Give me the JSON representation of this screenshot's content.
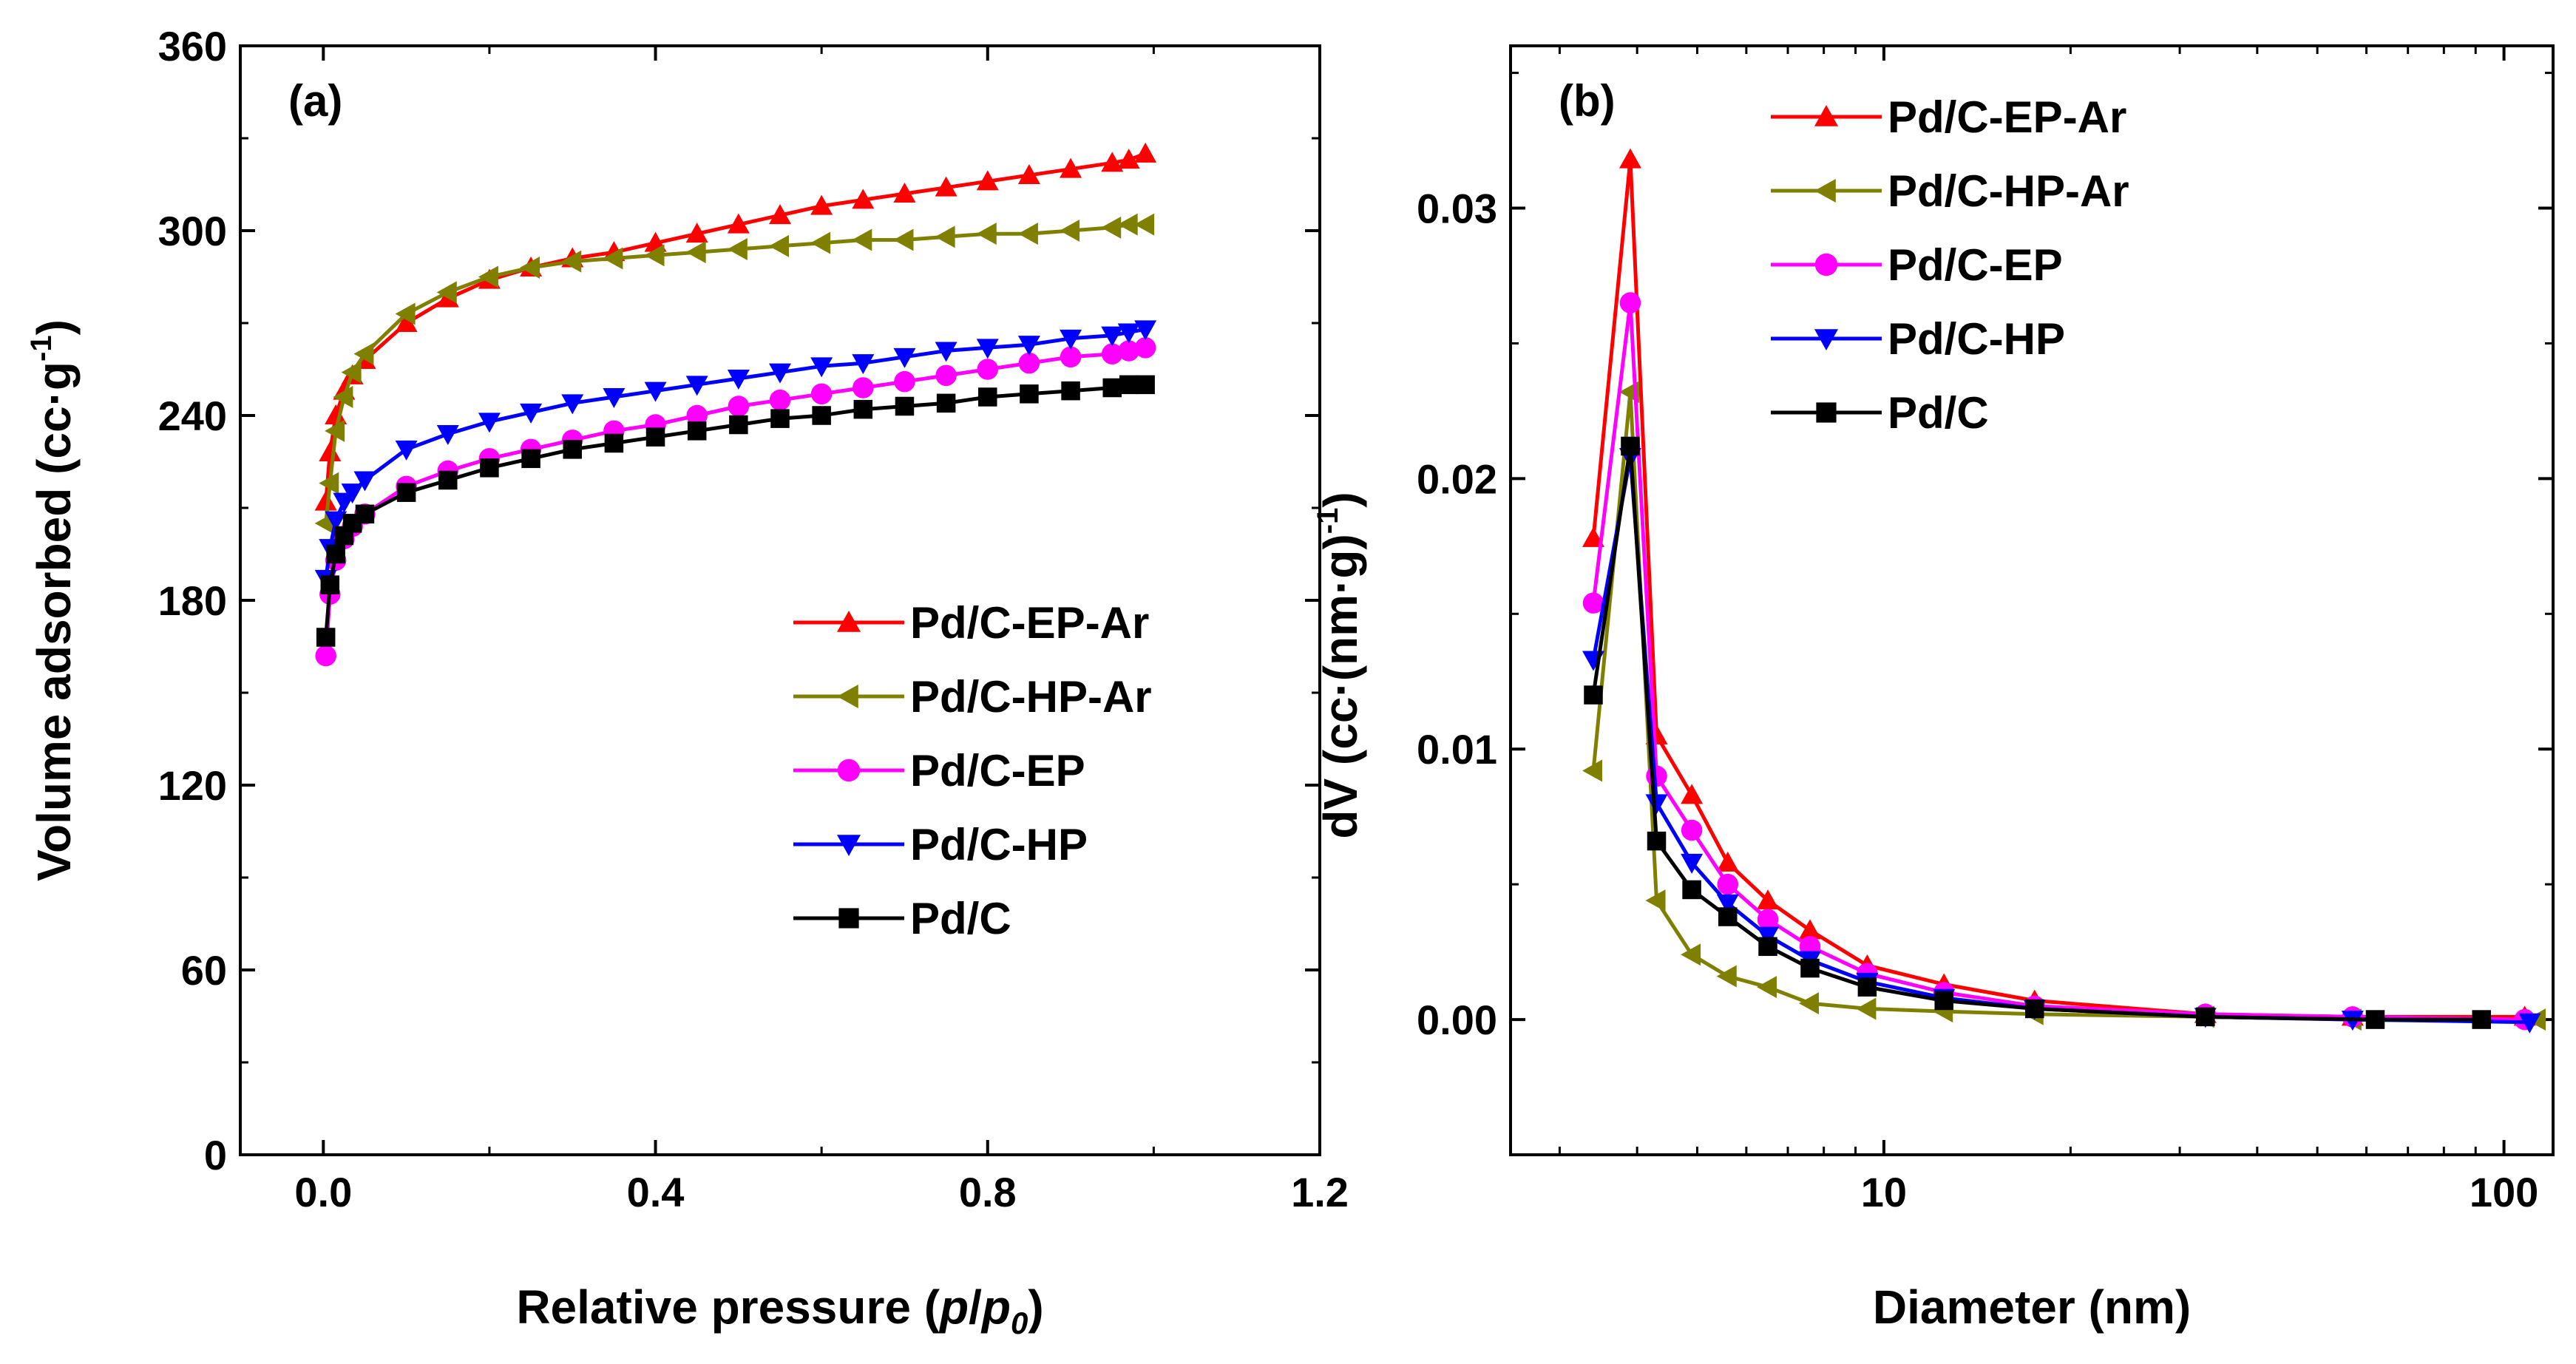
{
  "chart_data": [
    {
      "type": "line",
      "panel_label": "(a)",
      "xlabel_parts": [
        "Relative pressure (",
        "p",
        "/",
        "p",
        "0",
        ")"
      ],
      "ylabel": "Volume adsorbed (cc·g",
      "ylabel_sup": "-1",
      "ylabel_close": ")",
      "xlim": [
        -0.1,
        1.2
      ],
      "ylim": [
        0,
        360
      ],
      "xticks": [
        0.0,
        0.4,
        0.8,
        1.2
      ],
      "xtick_labels": [
        "0.0",
        "0.4",
        "0.8",
        "1.2"
      ],
      "yticks": [
        0,
        60,
        120,
        180,
        240,
        300,
        360
      ],
      "ytick_labels": [
        "0",
        "60",
        "120",
        "180",
        "240",
        "300",
        "360"
      ],
      "legend_position": "center-right",
      "series": [
        {
          "name": "Pd/C-EP-Ar",
          "color": "#ff0000",
          "marker": "triangle-up",
          "x": [
            0.003,
            0.008,
            0.015,
            0.025,
            0.035,
            0.05,
            0.1,
            0.15,
            0.2,
            0.25,
            0.3,
            0.35,
            0.4,
            0.45,
            0.5,
            0.55,
            0.6,
            0.65,
            0.7,
            0.75,
            0.8,
            0.85,
            0.9,
            0.95,
            0.97,
            0.99
          ],
          "y": [
            212,
            228,
            240,
            248,
            253,
            258,
            270,
            278,
            284,
            288,
            291,
            293,
            296,
            299,
            302,
            305,
            308,
            310,
            312,
            314,
            316,
            318,
            320,
            322,
            323,
            325
          ]
        },
        {
          "name": "Pd/C-HP-Ar",
          "color": "#808000",
          "marker": "triangle-left",
          "x": [
            0.003,
            0.008,
            0.015,
            0.025,
            0.035,
            0.05,
            0.1,
            0.15,
            0.2,
            0.25,
            0.3,
            0.35,
            0.4,
            0.45,
            0.5,
            0.55,
            0.6,
            0.65,
            0.7,
            0.75,
            0.8,
            0.85,
            0.9,
            0.95,
            0.97,
            0.99
          ],
          "y": [
            205,
            218,
            235,
            246,
            254,
            260,
            273,
            280,
            285,
            288,
            290,
            291,
            292,
            293,
            294,
            295,
            296,
            297,
            297,
            298,
            299,
            299,
            300,
            301,
            302,
            302
          ]
        },
        {
          "name": "Pd/C-EP",
          "color": "#ff00ff",
          "marker": "circle",
          "x": [
            0.003,
            0.008,
            0.015,
            0.025,
            0.035,
            0.05,
            0.1,
            0.15,
            0.2,
            0.25,
            0.3,
            0.35,
            0.4,
            0.45,
            0.5,
            0.55,
            0.6,
            0.65,
            0.7,
            0.75,
            0.8,
            0.85,
            0.9,
            0.95,
            0.97,
            0.99
          ],
          "y": [
            162,
            182,
            193,
            200,
            204,
            208,
            217,
            222,
            226,
            229,
            232,
            235,
            237,
            240,
            243,
            245,
            247,
            249,
            251,
            253,
            255,
            257,
            259,
            260,
            261,
            262
          ]
        },
        {
          "name": "Pd/C-HP",
          "color": "#0000ff",
          "marker": "triangle-down",
          "x": [
            0.003,
            0.008,
            0.015,
            0.025,
            0.035,
            0.05,
            0.1,
            0.15,
            0.2,
            0.25,
            0.3,
            0.35,
            0.4,
            0.45,
            0.5,
            0.55,
            0.6,
            0.65,
            0.7,
            0.75,
            0.8,
            0.85,
            0.9,
            0.95,
            0.97,
            0.99
          ],
          "y": [
            187,
            197,
            206,
            212,
            215,
            219,
            229,
            234,
            238,
            241,
            244,
            246,
            248,
            250,
            252,
            254,
            256,
            257,
            259,
            261,
            262,
            263,
            265,
            266,
            267,
            268
          ]
        },
        {
          "name": "Pd/C",
          "color": "#000000",
          "marker": "square",
          "x": [
            0.003,
            0.008,
            0.015,
            0.025,
            0.035,
            0.05,
            0.1,
            0.15,
            0.2,
            0.25,
            0.3,
            0.35,
            0.4,
            0.45,
            0.5,
            0.55,
            0.6,
            0.65,
            0.7,
            0.75,
            0.8,
            0.85,
            0.9,
            0.95,
            0.97,
            0.99
          ],
          "y": [
            168,
            185,
            195,
            201,
            205,
            208,
            215,
            219,
            223,
            226,
            229,
            231,
            233,
            235,
            237,
            239,
            240,
            242,
            243,
            244,
            246,
            247,
            248,
            249,
            250,
            250
          ]
        }
      ]
    },
    {
      "type": "line",
      "panel_label": "(b)",
      "xlabel": "Diameter (nm)",
      "ylabel": "dV (cc·(nm·g)",
      "ylabel_sup": "-1",
      "ylabel_close": ")",
      "xscale": "log",
      "xlim": [
        2.5,
        120
      ],
      "ylim": [
        -0.005,
        0.036
      ],
      "xticks": [
        10,
        100
      ],
      "xtick_labels": [
        "10",
        "100"
      ],
      "yticks": [
        0.0,
        0.01,
        0.02,
        0.03
      ],
      "ytick_labels": [
        "0.00",
        "0.01",
        "0.02",
        "0.03"
      ],
      "legend_position": "top-right",
      "series": [
        {
          "name": "Pd/C-EP-Ar",
          "color": "#ff0000",
          "marker": "triangle-up",
          "x": [
            3.4,
            3.9,
            4.3,
            4.9,
            5.6,
            6.5,
            7.6,
            9.4,
            12.5,
            17.5,
            33,
            57,
            108
          ],
          "y": [
            0.0178,
            0.0318,
            0.0105,
            0.0083,
            0.0058,
            0.0044,
            0.0033,
            0.002,
            0.0013,
            0.0007,
            0.0002,
            0.0001,
            0.0001
          ]
        },
        {
          "name": "Pd/C-HP-Ar",
          "color": "#808000",
          "marker": "triangle-left",
          "x": [
            3.4,
            3.9,
            4.3,
            4.9,
            5.6,
            6.5,
            7.6,
            9.4,
            12.5,
            17.5,
            33,
            57,
            113
          ],
          "y": [
            0.0092,
            0.0232,
            0.0044,
            0.0024,
            0.0016,
            0.0012,
            0.0006,
            0.0004,
            0.0003,
            0.0002,
            0.0001,
            0.0,
            0.0
          ]
        },
        {
          "name": "Pd/C-EP",
          "color": "#ff00ff",
          "marker": "circle",
          "x": [
            3.4,
            3.9,
            4.3,
            4.9,
            5.6,
            6.5,
            7.6,
            9.4,
            12.5,
            17.5,
            33,
            57,
            108
          ],
          "y": [
            0.0154,
            0.0265,
            0.009,
            0.007,
            0.005,
            0.0037,
            0.0027,
            0.0017,
            0.001,
            0.0005,
            0.0002,
            0.0001,
            0.0
          ]
        },
        {
          "name": "Pd/C-HP",
          "color": "#0000ff",
          "marker": "triangle-down",
          "x": [
            3.4,
            3.9,
            4.3,
            4.9,
            5.6,
            6.5,
            7.6,
            9.4,
            12.5,
            17.5,
            33,
            57,
            110
          ],
          "y": [
            0.0133,
            0.0208,
            0.008,
            0.0058,
            0.0043,
            0.0031,
            0.0022,
            0.0014,
            0.0008,
            0.0004,
            0.0001,
            0.0,
            -0.0001
          ]
        },
        {
          "name": "Pd/C",
          "color": "#000000",
          "marker": "square",
          "x": [
            3.4,
            3.9,
            4.3,
            4.9,
            5.6,
            6.5,
            7.6,
            9.4,
            12.5,
            17.5,
            33,
            62,
            92
          ],
          "y": [
            0.012,
            0.0212,
            0.0066,
            0.0048,
            0.0038,
            0.0027,
            0.0019,
            0.0012,
            0.0007,
            0.0004,
            0.0001,
            0.0,
            0.0
          ]
        }
      ]
    }
  ]
}
